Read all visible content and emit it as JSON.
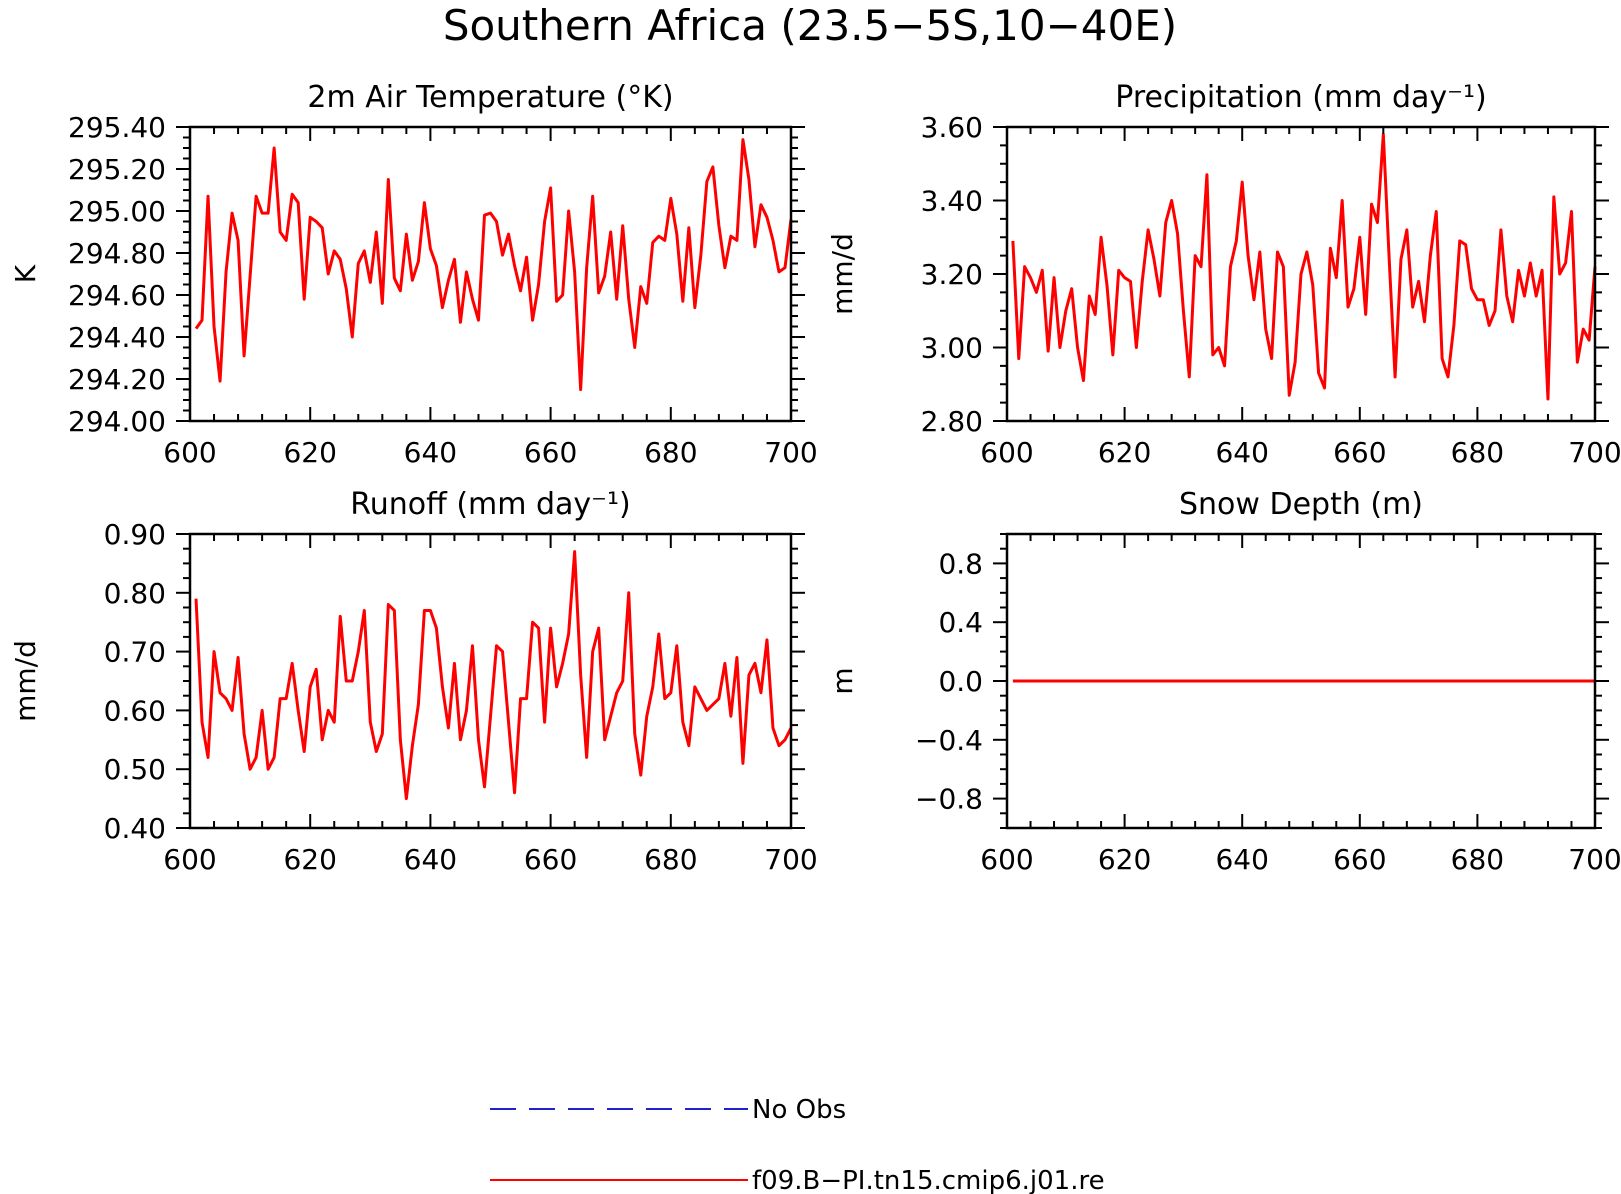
{
  "figure": {
    "title": "Southern Africa (23.5−5S,10−40E)",
    "legend": [
      {
        "label": "No Obs",
        "color": "#2222cc",
        "style": "dashed"
      },
      {
        "label": "f09.B−PI.tn15.cmip6.j01.re",
        "color": "#ff0000",
        "style": "solid"
      }
    ]
  },
  "chart_data": [
    {
      "type": "line",
      "title": "2m Air Temperature (°K)",
      "ylabel": "K",
      "xlim": [
        600,
        700
      ],
      "ylim": [
        294.0,
        295.4
      ],
      "xticks": [
        600,
        620,
        640,
        660,
        680,
        700
      ],
      "yticks": [
        294.0,
        294.2,
        294.4,
        294.6,
        294.8,
        295.0,
        295.2,
        295.4
      ],
      "yticklabels": [
        "294.00",
        "294.20",
        "294.40",
        "294.60",
        "294.80",
        "295.00",
        "295.20",
        "295.40"
      ],
      "series": [
        {
          "color": "#ff0000",
          "x_start": 601,
          "values": [
            294.44,
            294.48,
            295.07,
            294.45,
            294.19,
            294.71,
            294.99,
            294.86,
            294.31,
            294.69,
            295.07,
            294.99,
            294.99,
            295.3,
            294.9,
            294.86,
            295.08,
            295.04,
            294.58,
            294.97,
            294.95,
            294.92,
            294.7,
            294.81,
            294.77,
            294.63,
            294.4,
            294.75,
            294.81,
            294.66,
            294.9,
            294.56,
            295.15,
            294.68,
            294.62,
            294.89,
            294.67,
            294.76,
            295.04,
            294.82,
            294.74,
            294.54,
            294.67,
            294.77,
            294.47,
            294.71,
            294.58,
            294.48,
            294.98,
            294.99,
            294.95,
            294.79,
            294.89,
            294.74,
            294.62,
            294.78,
            294.48,
            294.65,
            294.95,
            295.11,
            294.57,
            294.6,
            295.0,
            294.71,
            294.15,
            294.73,
            295.07,
            294.61,
            294.69,
            294.9,
            294.58,
            294.93,
            294.58,
            294.35,
            294.64,
            294.56,
            294.85,
            294.88,
            294.86,
            295.06,
            294.89,
            294.57,
            294.92,
            294.54,
            294.79,
            295.14,
            295.21,
            294.93,
            294.73,
            294.88,
            294.86,
            295.34,
            295.15,
            294.83,
            295.03,
            294.97,
            294.86,
            294.71,
            294.73,
            294.96
          ]
        }
      ]
    },
    {
      "type": "line",
      "title": "Precipitation (mm day⁻¹)",
      "ylabel": "mm/d",
      "xlim": [
        600,
        700
      ],
      "ylim": [
        2.8,
        3.6
      ],
      "xticks": [
        600,
        620,
        640,
        660,
        680,
        700
      ],
      "yticks": [
        2.8,
        3.0,
        3.2,
        3.4,
        3.6
      ],
      "yticklabels": [
        "2.80",
        "3.00",
        "3.20",
        "3.40",
        "3.60"
      ],
      "series": [
        {
          "color": "#ff0000",
          "x_start": 601,
          "values": [
            3.29,
            2.97,
            3.22,
            3.19,
            3.15,
            3.21,
            2.99,
            3.19,
            3.0,
            3.1,
            3.16,
            3.0,
            2.91,
            3.14,
            3.09,
            3.3,
            3.17,
            2.98,
            3.21,
            3.19,
            3.18,
            3.0,
            3.18,
            3.32,
            3.24,
            3.14,
            3.34,
            3.4,
            3.31,
            3.1,
            2.92,
            3.25,
            3.22,
            3.47,
            2.98,
            3.0,
            2.95,
            3.22,
            3.29,
            3.45,
            3.25,
            3.13,
            3.26,
            3.05,
            2.97,
            3.26,
            3.22,
            2.87,
            2.96,
            3.2,
            3.26,
            3.17,
            2.93,
            2.89,
            3.27,
            3.19,
            3.4,
            3.11,
            3.16,
            3.3,
            3.09,
            3.39,
            3.34,
            3.58,
            3.24,
            2.92,
            3.24,
            3.32,
            3.11,
            3.18,
            3.07,
            3.25,
            3.37,
            2.97,
            2.92,
            3.06,
            3.29,
            3.28,
            3.16,
            3.13,
            3.13,
            3.06,
            3.1,
            3.32,
            3.14,
            3.07,
            3.21,
            3.14,
            3.23,
            3.14,
            3.21,
            2.86,
            3.41,
            3.2,
            3.23,
            3.37,
            2.96,
            3.05,
            3.02,
            3.22
          ]
        }
      ]
    },
    {
      "type": "line",
      "title": "Runoff (mm day⁻¹)",
      "ylabel": "mm/d",
      "xlim": [
        600,
        700
      ],
      "ylim": [
        0.4,
        0.9
      ],
      "xticks": [
        600,
        620,
        640,
        660,
        680,
        700
      ],
      "yticks": [
        0.4,
        0.5,
        0.6,
        0.7,
        0.8,
        0.9
      ],
      "yticklabels": [
        "0.40",
        "0.50",
        "0.60",
        "0.70",
        "0.80",
        "0.90"
      ],
      "series": [
        {
          "color": "#ff0000",
          "x_start": 601,
          "values": [
            0.79,
            0.58,
            0.52,
            0.7,
            0.63,
            0.62,
            0.6,
            0.69,
            0.56,
            0.5,
            0.52,
            0.6,
            0.5,
            0.52,
            0.62,
            0.62,
            0.68,
            0.6,
            0.53,
            0.64,
            0.67,
            0.55,
            0.6,
            0.58,
            0.76,
            0.65,
            0.65,
            0.7,
            0.77,
            0.58,
            0.53,
            0.56,
            0.78,
            0.77,
            0.55,
            0.45,
            0.54,
            0.61,
            0.77,
            0.77,
            0.74,
            0.64,
            0.57,
            0.68,
            0.55,
            0.6,
            0.71,
            0.55,
            0.47,
            0.59,
            0.71,
            0.7,
            0.58,
            0.46,
            0.62,
            0.62,
            0.75,
            0.74,
            0.58,
            0.74,
            0.64,
            0.68,
            0.73,
            0.87,
            0.66,
            0.52,
            0.7,
            0.74,
            0.55,
            0.59,
            0.63,
            0.65,
            0.8,
            0.56,
            0.49,
            0.59,
            0.64,
            0.73,
            0.62,
            0.63,
            0.71,
            0.58,
            0.54,
            0.64,
            0.62,
            0.6,
            0.61,
            0.62,
            0.68,
            0.59,
            0.69,
            0.51,
            0.66,
            0.68,
            0.63,
            0.72,
            0.57,
            0.54,
            0.55,
            0.57
          ]
        }
      ]
    },
    {
      "type": "line",
      "title": "Snow Depth (m)",
      "ylabel": "m",
      "xlim": [
        600,
        700
      ],
      "ylim": [
        -1.0,
        1.0
      ],
      "xticks": [
        600,
        620,
        640,
        660,
        680,
        700
      ],
      "yticks": [
        -0.8,
        -0.4,
        0.0,
        0.4,
        0.8
      ],
      "yticklabels": [
        "−0.8",
        "−0.4",
        "0.0",
        "0.4",
        "0.8"
      ],
      "series": [
        {
          "color": "#ff0000",
          "x_start": 601,
          "constant": 0.0,
          "count": 100
        }
      ]
    }
  ]
}
